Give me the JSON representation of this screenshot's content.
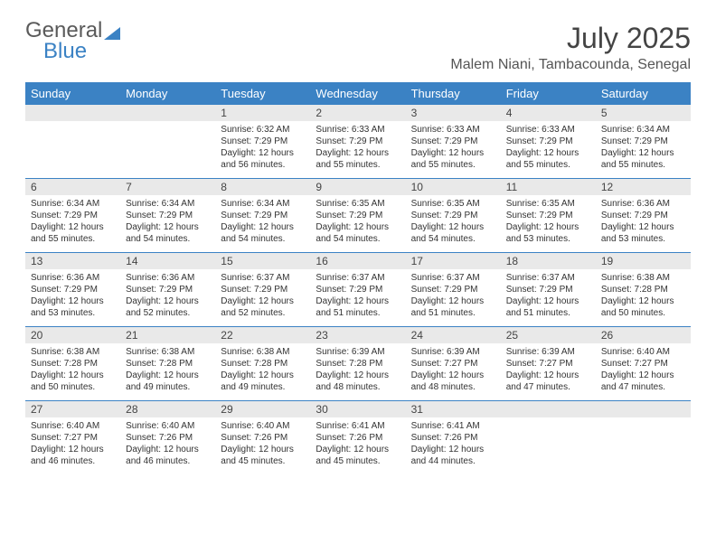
{
  "logo": {
    "word1": "General",
    "word2": "Blue"
  },
  "title": "July 2025",
  "location": "Malem Niani, Tambacounda, Senegal",
  "colors": {
    "header_bg": "#3b82c4",
    "header_text": "#ffffff",
    "daynum_bg": "#e9e9e9",
    "row_border": "#3b82c4",
    "text": "#333333",
    "title_text": "#444444"
  },
  "typography": {
    "title_fontsize": 32,
    "location_fontsize": 16,
    "header_fontsize": 13,
    "daynum_fontsize": 12,
    "cell_fontsize": 10
  },
  "weekdays": [
    "Sunday",
    "Monday",
    "Tuesday",
    "Wednesday",
    "Thursday",
    "Friday",
    "Saturday"
  ],
  "weeks": [
    [
      null,
      null,
      {
        "n": "1",
        "sr": "Sunrise: 6:32 AM",
        "ss": "Sunset: 7:29 PM",
        "dl": "Daylight: 12 hours and 56 minutes."
      },
      {
        "n": "2",
        "sr": "Sunrise: 6:33 AM",
        "ss": "Sunset: 7:29 PM",
        "dl": "Daylight: 12 hours and 55 minutes."
      },
      {
        "n": "3",
        "sr": "Sunrise: 6:33 AM",
        "ss": "Sunset: 7:29 PM",
        "dl": "Daylight: 12 hours and 55 minutes."
      },
      {
        "n": "4",
        "sr": "Sunrise: 6:33 AM",
        "ss": "Sunset: 7:29 PM",
        "dl": "Daylight: 12 hours and 55 minutes."
      },
      {
        "n": "5",
        "sr": "Sunrise: 6:34 AM",
        "ss": "Sunset: 7:29 PM",
        "dl": "Daylight: 12 hours and 55 minutes."
      }
    ],
    [
      {
        "n": "6",
        "sr": "Sunrise: 6:34 AM",
        "ss": "Sunset: 7:29 PM",
        "dl": "Daylight: 12 hours and 55 minutes."
      },
      {
        "n": "7",
        "sr": "Sunrise: 6:34 AM",
        "ss": "Sunset: 7:29 PM",
        "dl": "Daylight: 12 hours and 54 minutes."
      },
      {
        "n": "8",
        "sr": "Sunrise: 6:34 AM",
        "ss": "Sunset: 7:29 PM",
        "dl": "Daylight: 12 hours and 54 minutes."
      },
      {
        "n": "9",
        "sr": "Sunrise: 6:35 AM",
        "ss": "Sunset: 7:29 PM",
        "dl": "Daylight: 12 hours and 54 minutes."
      },
      {
        "n": "10",
        "sr": "Sunrise: 6:35 AM",
        "ss": "Sunset: 7:29 PM",
        "dl": "Daylight: 12 hours and 54 minutes."
      },
      {
        "n": "11",
        "sr": "Sunrise: 6:35 AM",
        "ss": "Sunset: 7:29 PM",
        "dl": "Daylight: 12 hours and 53 minutes."
      },
      {
        "n": "12",
        "sr": "Sunrise: 6:36 AM",
        "ss": "Sunset: 7:29 PM",
        "dl": "Daylight: 12 hours and 53 minutes."
      }
    ],
    [
      {
        "n": "13",
        "sr": "Sunrise: 6:36 AM",
        "ss": "Sunset: 7:29 PM",
        "dl": "Daylight: 12 hours and 53 minutes."
      },
      {
        "n": "14",
        "sr": "Sunrise: 6:36 AM",
        "ss": "Sunset: 7:29 PM",
        "dl": "Daylight: 12 hours and 52 minutes."
      },
      {
        "n": "15",
        "sr": "Sunrise: 6:37 AM",
        "ss": "Sunset: 7:29 PM",
        "dl": "Daylight: 12 hours and 52 minutes."
      },
      {
        "n": "16",
        "sr": "Sunrise: 6:37 AM",
        "ss": "Sunset: 7:29 PM",
        "dl": "Daylight: 12 hours and 51 minutes."
      },
      {
        "n": "17",
        "sr": "Sunrise: 6:37 AM",
        "ss": "Sunset: 7:29 PM",
        "dl": "Daylight: 12 hours and 51 minutes."
      },
      {
        "n": "18",
        "sr": "Sunrise: 6:37 AM",
        "ss": "Sunset: 7:29 PM",
        "dl": "Daylight: 12 hours and 51 minutes."
      },
      {
        "n": "19",
        "sr": "Sunrise: 6:38 AM",
        "ss": "Sunset: 7:28 PM",
        "dl": "Daylight: 12 hours and 50 minutes."
      }
    ],
    [
      {
        "n": "20",
        "sr": "Sunrise: 6:38 AM",
        "ss": "Sunset: 7:28 PM",
        "dl": "Daylight: 12 hours and 50 minutes."
      },
      {
        "n": "21",
        "sr": "Sunrise: 6:38 AM",
        "ss": "Sunset: 7:28 PM",
        "dl": "Daylight: 12 hours and 49 minutes."
      },
      {
        "n": "22",
        "sr": "Sunrise: 6:38 AM",
        "ss": "Sunset: 7:28 PM",
        "dl": "Daylight: 12 hours and 49 minutes."
      },
      {
        "n": "23",
        "sr": "Sunrise: 6:39 AM",
        "ss": "Sunset: 7:28 PM",
        "dl": "Daylight: 12 hours and 48 minutes."
      },
      {
        "n": "24",
        "sr": "Sunrise: 6:39 AM",
        "ss": "Sunset: 7:27 PM",
        "dl": "Daylight: 12 hours and 48 minutes."
      },
      {
        "n": "25",
        "sr": "Sunrise: 6:39 AM",
        "ss": "Sunset: 7:27 PM",
        "dl": "Daylight: 12 hours and 47 minutes."
      },
      {
        "n": "26",
        "sr": "Sunrise: 6:40 AM",
        "ss": "Sunset: 7:27 PM",
        "dl": "Daylight: 12 hours and 47 minutes."
      }
    ],
    [
      {
        "n": "27",
        "sr": "Sunrise: 6:40 AM",
        "ss": "Sunset: 7:27 PM",
        "dl": "Daylight: 12 hours and 46 minutes."
      },
      {
        "n": "28",
        "sr": "Sunrise: 6:40 AM",
        "ss": "Sunset: 7:26 PM",
        "dl": "Daylight: 12 hours and 46 minutes."
      },
      {
        "n": "29",
        "sr": "Sunrise: 6:40 AM",
        "ss": "Sunset: 7:26 PM",
        "dl": "Daylight: 12 hours and 45 minutes."
      },
      {
        "n": "30",
        "sr": "Sunrise: 6:41 AM",
        "ss": "Sunset: 7:26 PM",
        "dl": "Daylight: 12 hours and 45 minutes."
      },
      {
        "n": "31",
        "sr": "Sunrise: 6:41 AM",
        "ss": "Sunset: 7:26 PM",
        "dl": "Daylight: 12 hours and 44 minutes."
      },
      null,
      null
    ]
  ]
}
